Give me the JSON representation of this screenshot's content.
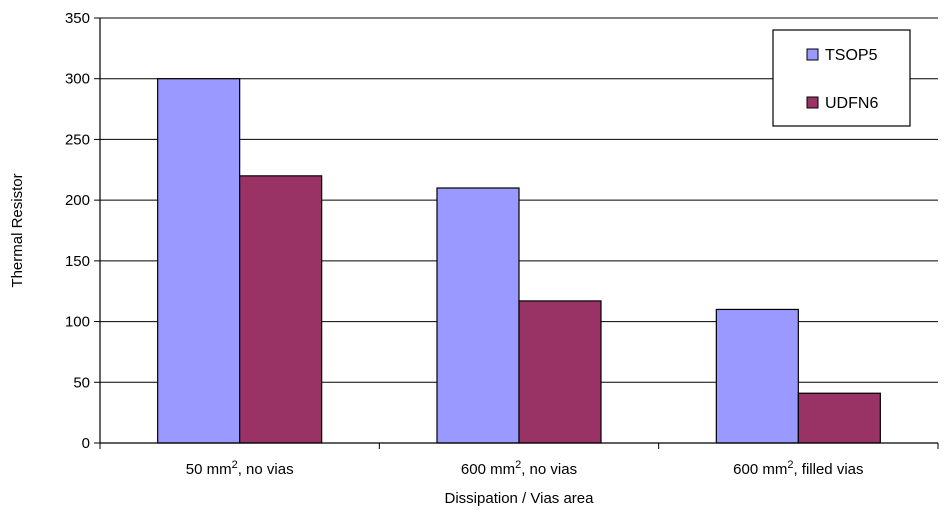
{
  "chart_data": {
    "type": "bar",
    "categories": [
      {
        "base": "50 mm",
        "sup": "2",
        "rest": ", no vias"
      },
      {
        "base": "600 mm",
        "sup": "2",
        "rest": ", no vias"
      },
      {
        "base": "600 mm",
        "sup": "2",
        "rest": ", filled vias"
      }
    ],
    "series": [
      {
        "name": "TSOP5",
        "values": [
          300,
          210,
          110
        ],
        "color": "#9999ff"
      },
      {
        "name": "UDFN6",
        "values": [
          220,
          117,
          41
        ],
        "color": "#993366"
      }
    ],
    "xlabel": "Dissipation / Vias area",
    "ylabel": "Thermal Resistor",
    "ylim": [
      0,
      350
    ],
    "yticks": [
      0,
      50,
      100,
      150,
      200,
      250,
      300,
      350
    ],
    "grid": true,
    "legend_position": "top-right"
  }
}
